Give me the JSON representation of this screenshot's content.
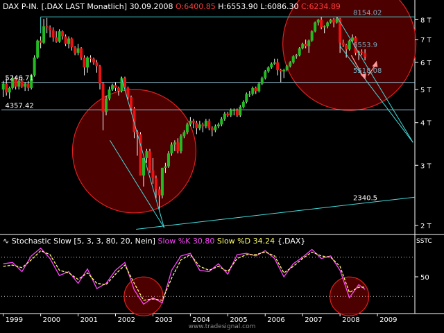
{
  "header": {
    "symbol": "DAX P-IN. [.DAX LAST Monatlich]",
    "date": "30.09.2008",
    "open_label": "O:",
    "open": "6400.85",
    "high_label": "H:",
    "high": "6553.90",
    "low_label": "L:",
    "low": "6086.30",
    "close_label": "C:",
    "close": "6234.89"
  },
  "indicator_header": {
    "icon": "wave-icon",
    "title": "Stochastic Slow [5, 3, 3, 80, 20, Nein]",
    "k_label": "Slow %K 30.80",
    "d_label": "Slow %D 34.24",
    "symbol": "{.DAX}"
  },
  "footer": {
    "watermark": "www.tradesignal.com"
  },
  "colors": {
    "up": "#22bb22",
    "down": "#ee1111",
    "trendline": "#44dddd",
    "circle_fill": "#5a0000",
    "circle_stroke": "#dd2222",
    "k_line": "#ff44ff",
    "d_line": "#ffff66",
    "axis_text": "#ffffff"
  },
  "chart_data": [
    {
      "type": "candlestick",
      "title": "DAX P-IN. [.DAX LAST Monatlich]",
      "x_ticks": [
        "1999",
        "2000",
        "2001",
        "2002",
        "2003",
        "2004",
        "2005",
        "2006",
        "2007",
        "2008",
        "2009"
      ],
      "y_ticks": [
        "2 T",
        "3 T",
        "4 T",
        "5 T",
        "6 T",
        "7 T",
        "8 T"
      ],
      "ylim": [
        1900,
        8400
      ],
      "xlim": [
        1998.95,
        2010.0
      ],
      "scale": "log",
      "price_labels": [
        "8154.02",
        "6553.9",
        "5518.08",
        "5246.71",
        "4357.42",
        "2340.5"
      ],
      "candles": [
        {
          "t": 1999.0,
          "o": 5000,
          "h": 5300,
          "l": 4750,
          "c": 5200
        },
        {
          "t": 1999.083,
          "o": 5200,
          "h": 5400,
          "l": 4800,
          "c": 4900
        },
        {
          "t": 1999.167,
          "o": 4900,
          "h": 5100,
          "l": 4700,
          "c": 5050
        },
        {
          "t": 1999.25,
          "o": 5050,
          "h": 5500,
          "l": 5000,
          "c": 5400
        },
        {
          "t": 1999.333,
          "o": 5400,
          "h": 5450,
          "l": 5000,
          "c": 5100
        },
        {
          "t": 1999.417,
          "o": 5100,
          "h": 5350,
          "l": 5000,
          "c": 5300
        },
        {
          "t": 1999.5,
          "o": 5300,
          "h": 5450,
          "l": 5050,
          "c": 5100
        },
        {
          "t": 1999.583,
          "o": 5100,
          "h": 5250,
          "l": 4950,
          "c": 5200
        },
        {
          "t": 1999.667,
          "o": 5200,
          "h": 5300,
          "l": 4950,
          "c": 5050
        },
        {
          "t": 1999.75,
          "o": 5050,
          "h": 5550,
          "l": 5000,
          "c": 5500
        },
        {
          "t": 1999.833,
          "o": 5500,
          "h": 6300,
          "l": 5450,
          "c": 6200
        },
        {
          "t": 1999.917,
          "o": 6200,
          "h": 7000,
          "l": 6150,
          "c": 6950
        },
        {
          "t": 2000.0,
          "o": 6950,
          "h": 7150,
          "l": 6600,
          "c": 6850
        },
        {
          "t": 2000.083,
          "o": 6850,
          "h": 8050,
          "l": 6800,
          "c": 7650
        },
        {
          "t": 2000.167,
          "o": 7650,
          "h": 8100,
          "l": 7300,
          "c": 7600
        },
        {
          "t": 2000.25,
          "o": 7600,
          "h": 7700,
          "l": 7100,
          "c": 7450
        },
        {
          "t": 2000.333,
          "o": 7450,
          "h": 7600,
          "l": 6900,
          "c": 7100
        },
        {
          "t": 2000.417,
          "o": 7100,
          "h": 7400,
          "l": 6850,
          "c": 6900
        },
        {
          "t": 2000.5,
          "o": 6900,
          "h": 7500,
          "l": 6850,
          "c": 7400
        },
        {
          "t": 2000.583,
          "o": 7400,
          "h": 7450,
          "l": 7000,
          "c": 7150
        },
        {
          "t": 2000.667,
          "o": 7150,
          "h": 7250,
          "l": 6700,
          "c": 6800
        },
        {
          "t": 2000.75,
          "o": 6800,
          "h": 7150,
          "l": 6600,
          "c": 7050
        },
        {
          "t": 2000.833,
          "o": 7050,
          "h": 7100,
          "l": 6500,
          "c": 6650
        },
        {
          "t": 2000.917,
          "o": 6650,
          "h": 6700,
          "l": 6300,
          "c": 6400
        },
        {
          "t": 2001.0,
          "o": 6400,
          "h": 6800,
          "l": 6300,
          "c": 6600
        },
        {
          "t": 2001.083,
          "o": 6600,
          "h": 6650,
          "l": 6100,
          "c": 6200
        },
        {
          "t": 2001.167,
          "o": 6200,
          "h": 6300,
          "l": 5500,
          "c": 5800
        },
        {
          "t": 2001.25,
          "o": 5800,
          "h": 6250,
          "l": 5600,
          "c": 6200
        },
        {
          "t": 2001.333,
          "o": 6200,
          "h": 6300,
          "l": 6000,
          "c": 6150
        },
        {
          "t": 2001.417,
          "o": 6150,
          "h": 6200,
          "l": 5900,
          "c": 6000
        },
        {
          "t": 2001.5,
          "o": 6000,
          "h": 6100,
          "l": 5600,
          "c": 5850
        },
        {
          "t": 2001.583,
          "o": 5850,
          "h": 5900,
          "l": 5000,
          "c": 5200
        },
        {
          "t": 2001.667,
          "o": 5200,
          "h": 5250,
          "l": 3800,
          "c": 4300
        },
        {
          "t": 2001.75,
          "o": 4300,
          "h": 4800,
          "l": 4200,
          "c": 4700
        },
        {
          "t": 2001.833,
          "o": 4700,
          "h": 5100,
          "l": 4650,
          "c": 5000
        },
        {
          "t": 2001.917,
          "o": 5000,
          "h": 5200,
          "l": 4950,
          "c": 5150
        },
        {
          "t": 2002.0,
          "o": 5150,
          "h": 5250,
          "l": 4950,
          "c": 5050
        },
        {
          "t": 2002.083,
          "o": 5050,
          "h": 5100,
          "l": 4800,
          "c": 4950
        },
        {
          "t": 2002.167,
          "o": 4950,
          "h": 5450,
          "l": 4900,
          "c": 5400
        },
        {
          "t": 2002.25,
          "o": 5400,
          "h": 5450,
          "l": 4950,
          "c": 5050
        },
        {
          "t": 2002.333,
          "o": 5050,
          "h": 5100,
          "l": 4650,
          "c": 4750
        },
        {
          "t": 2002.417,
          "o": 4750,
          "h": 4800,
          "l": 4300,
          "c": 4400
        },
        {
          "t": 2002.5,
          "o": 4400,
          "h": 4450,
          "l": 3600,
          "c": 3750
        },
        {
          "t": 2002.583,
          "o": 3750,
          "h": 3800,
          "l": 3200,
          "c": 3700
        },
        {
          "t": 2002.667,
          "o": 3700,
          "h": 3750,
          "l": 2800,
          "c": 2800
        },
        {
          "t": 2002.75,
          "o": 2800,
          "h": 3150,
          "l": 2600,
          "c": 3150
        },
        {
          "t": 2002.833,
          "o": 3150,
          "h": 3350,
          "l": 3050,
          "c": 3300
        },
        {
          "t": 2002.917,
          "o": 3300,
          "h": 3350,
          "l": 2850,
          "c": 2900
        },
        {
          "t": 2003.0,
          "o": 2900,
          "h": 3150,
          "l": 2650,
          "c": 2750
        },
        {
          "t": 2003.083,
          "o": 2750,
          "h": 2800,
          "l": 2400,
          "c": 2550
        },
        {
          "t": 2003.167,
          "o": 2550,
          "h": 2600,
          "l": 2200,
          "c": 2450
        },
        {
          "t": 2003.25,
          "o": 2450,
          "h": 2950,
          "l": 2400,
          "c": 2950
        },
        {
          "t": 2003.333,
          "o": 2950,
          "h": 3050,
          "l": 2850,
          "c": 2980
        },
        {
          "t": 2003.417,
          "o": 2980,
          "h": 3300,
          "l": 2950,
          "c": 3250
        },
        {
          "t": 2003.5,
          "o": 3250,
          "h": 3500,
          "l": 3200,
          "c": 3450
        },
        {
          "t": 2003.583,
          "o": 3450,
          "h": 3550,
          "l": 3300,
          "c": 3500
        },
        {
          "t": 2003.667,
          "o": 3500,
          "h": 3600,
          "l": 3250,
          "c": 3300
        },
        {
          "t": 2003.75,
          "o": 3300,
          "h": 3700,
          "l": 3250,
          "c": 3650
        },
        {
          "t": 2003.833,
          "o": 3650,
          "h": 3800,
          "l": 3600,
          "c": 3750
        },
        {
          "t": 2003.917,
          "o": 3750,
          "h": 4000,
          "l": 3700,
          "c": 3950
        },
        {
          "t": 2004.0,
          "o": 3950,
          "h": 4150,
          "l": 3900,
          "c": 4050
        },
        {
          "t": 2004.083,
          "o": 4050,
          "h": 4100,
          "l": 3850,
          "c": 4000
        },
        {
          "t": 2004.167,
          "o": 4000,
          "h": 4050,
          "l": 3700,
          "c": 3850
        },
        {
          "t": 2004.25,
          "o": 3850,
          "h": 4050,
          "l": 3800,
          "c": 3950
        },
        {
          "t": 2004.333,
          "o": 3950,
          "h": 4000,
          "l": 3750,
          "c": 3900
        },
        {
          "t": 2004.417,
          "o": 3900,
          "h": 4100,
          "l": 3850,
          "c": 4050
        },
        {
          "t": 2004.5,
          "o": 4050,
          "h": 4100,
          "l": 3800,
          "c": 3850
        },
        {
          "t": 2004.583,
          "o": 3850,
          "h": 3900,
          "l": 3650,
          "c": 3800
        },
        {
          "t": 2004.667,
          "o": 3800,
          "h": 3950,
          "l": 3750,
          "c": 3900
        },
        {
          "t": 2004.75,
          "o": 3900,
          "h": 4000,
          "l": 3850,
          "c": 3950
        },
        {
          "t": 2004.833,
          "o": 3950,
          "h": 4150,
          "l": 3900,
          "c": 4100
        },
        {
          "t": 2004.917,
          "o": 4100,
          "h": 4300,
          "l": 4050,
          "c": 4250
        },
        {
          "t": 2005.0,
          "o": 4250,
          "h": 4300,
          "l": 4150,
          "c": 4200
        },
        {
          "t": 2005.083,
          "o": 4200,
          "h": 4400,
          "l": 4150,
          "c": 4350
        },
        {
          "t": 2005.167,
          "o": 4350,
          "h": 4400,
          "l": 4200,
          "c": 4350
        },
        {
          "t": 2005.25,
          "o": 4350,
          "h": 4400,
          "l": 4150,
          "c": 4200
        },
        {
          "t": 2005.333,
          "o": 4200,
          "h": 4500,
          "l": 4150,
          "c": 4450
        },
        {
          "t": 2005.417,
          "o": 4450,
          "h": 4650,
          "l": 4400,
          "c": 4600
        },
        {
          "t": 2005.5,
          "o": 4600,
          "h": 4900,
          "l": 4550,
          "c": 4850
        },
        {
          "t": 2005.583,
          "o": 4850,
          "h": 4950,
          "l": 4750,
          "c": 4850
        },
        {
          "t": 2005.667,
          "o": 4850,
          "h": 5100,
          "l": 4800,
          "c": 5050
        },
        {
          "t": 2005.75,
          "o": 5050,
          "h": 5100,
          "l": 4850,
          "c": 4950
        },
        {
          "t": 2005.833,
          "o": 4950,
          "h": 5250,
          "l": 4900,
          "c": 5200
        },
        {
          "t": 2005.917,
          "o": 5200,
          "h": 5450,
          "l": 5150,
          "c": 5400
        },
        {
          "t": 2006.0,
          "o": 5400,
          "h": 5700,
          "l": 5350,
          "c": 5650
        },
        {
          "t": 2006.083,
          "o": 5650,
          "h": 5850,
          "l": 5600,
          "c": 5800
        },
        {
          "t": 2006.167,
          "o": 5800,
          "h": 6000,
          "l": 5750,
          "c": 5950
        },
        {
          "t": 2006.25,
          "o": 5950,
          "h": 6150,
          "l": 5900,
          "c": 6000
        },
        {
          "t": 2006.333,
          "o": 6000,
          "h": 6150,
          "l": 5500,
          "c": 5700
        },
        {
          "t": 2006.417,
          "o": 5700,
          "h": 5750,
          "l": 5250,
          "c": 5650
        },
        {
          "t": 2006.5,
          "o": 5650,
          "h": 5750,
          "l": 5400,
          "c": 5700
        },
        {
          "t": 2006.583,
          "o": 5700,
          "h": 5900,
          "l": 5650,
          "c": 5850
        },
        {
          "t": 2006.667,
          "o": 5850,
          "h": 6050,
          "l": 5800,
          "c": 6000
        },
        {
          "t": 2006.75,
          "o": 6000,
          "h": 6300,
          "l": 5950,
          "c": 6250
        },
        {
          "t": 2006.833,
          "o": 6250,
          "h": 6350,
          "l": 6150,
          "c": 6300
        },
        {
          "t": 2006.917,
          "o": 6300,
          "h": 6650,
          "l": 6250,
          "c": 6600
        },
        {
          "t": 2007.0,
          "o": 6600,
          "h": 6850,
          "l": 6550,
          "c": 6800
        },
        {
          "t": 2007.083,
          "o": 6800,
          "h": 7000,
          "l": 6600,
          "c": 6700
        },
        {
          "t": 2007.167,
          "o": 6700,
          "h": 7000,
          "l": 6400,
          "c": 6950
        },
        {
          "t": 2007.25,
          "o": 6950,
          "h": 7450,
          "l": 6900,
          "c": 7400
        },
        {
          "t": 2007.333,
          "o": 7400,
          "h": 7900,
          "l": 7350,
          "c": 7850
        },
        {
          "t": 2007.417,
          "o": 7850,
          "h": 8050,
          "l": 7700,
          "c": 8000
        },
        {
          "t": 2007.5,
          "o": 8000,
          "h": 8150,
          "l": 7500,
          "c": 7600
        },
        {
          "t": 2007.583,
          "o": 7600,
          "h": 7700,
          "l": 7300,
          "c": 7650
        },
        {
          "t": 2007.667,
          "o": 7650,
          "h": 7900,
          "l": 7550,
          "c": 7850
        },
        {
          "t": 2007.75,
          "o": 7850,
          "h": 8050,
          "l": 7800,
          "c": 8000
        },
        {
          "t": 2007.833,
          "o": 8000,
          "h": 8100,
          "l": 7600,
          "c": 7850
        },
        {
          "t": 2007.917,
          "o": 7850,
          "h": 8154,
          "l": 7800,
          "c": 8067
        },
        {
          "t": 2008.0,
          "o": 8067,
          "h": 8100,
          "l": 6400,
          "c": 6850
        },
        {
          "t": 2008.083,
          "o": 6850,
          "h": 7000,
          "l": 6650,
          "c": 6750
        },
        {
          "t": 2008.167,
          "o": 6750,
          "h": 6800,
          "l": 6200,
          "c": 6550
        },
        {
          "t": 2008.25,
          "o": 6550,
          "h": 7000,
          "l": 6500,
          "c": 6950
        },
        {
          "t": 2008.333,
          "o": 6950,
          "h": 7250,
          "l": 6900,
          "c": 7100
        },
        {
          "t": 2008.417,
          "o": 7100,
          "h": 7150,
          "l": 6300,
          "c": 6400
        },
        {
          "t": 2008.5,
          "o": 6400,
          "h": 6500,
          "l": 6100,
          "c": 6450
        },
        {
          "t": 2008.583,
          "o": 6450,
          "h": 6550,
          "l": 6300,
          "c": 6400
        },
        {
          "t": 2008.667,
          "o": 6400.85,
          "h": 6553.9,
          "l": 6086.3,
          "c": 6234.89
        }
      ]
    },
    {
      "type": "line",
      "title": "Stochastic Slow [5, 3, 3, 80, 20, Nein]",
      "y_ticks": [
        "50"
      ],
      "ylim": [
        0,
        100
      ],
      "reference_levels": [
        80,
        20
      ],
      "x": [
        1999.0,
        1999.25,
        1999.5,
        1999.75,
        2000.0,
        2000.25,
        2000.5,
        2000.75,
        2001.0,
        2001.25,
        2001.5,
        2001.75,
        2002.0,
        2002.25,
        2002.5,
        2002.75,
        2003.0,
        2003.25,
        2003.5,
        2003.75,
        2004.0,
        2004.25,
        2004.5,
        2004.75,
        2005.0,
        2005.25,
        2005.5,
        2005.75,
        2006.0,
        2006.25,
        2006.5,
        2006.75,
        2007.0,
        2007.25,
        2007.5,
        2007.75,
        2008.0,
        2008.25,
        2008.5,
        2008.667
      ],
      "series": [
        {
          "name": "Slow %K 30.80",
          "values": [
            70,
            72,
            58,
            82,
            94,
            78,
            52,
            58,
            40,
            62,
            32,
            40,
            60,
            72,
            30,
            8,
            18,
            10,
            60,
            82,
            86,
            60,
            58,
            70,
            54,
            84,
            86,
            82,
            90,
            78,
            50,
            70,
            80,
            92,
            78,
            82,
            60,
            18,
            38,
            30.8
          ]
        },
        {
          "name": "Slow %D 34.24",
          "values": [
            66,
            68,
            64,
            76,
            90,
            84,
            60,
            56,
            46,
            56,
            40,
            38,
            54,
            68,
            40,
            14,
            16,
            14,
            48,
            76,
            84,
            66,
            60,
            66,
            58,
            78,
            84,
            84,
            88,
            82,
            56,
            66,
            78,
            88,
            82,
            80,
            66,
            26,
            34,
            34.24
          ]
        }
      ]
    }
  ]
}
